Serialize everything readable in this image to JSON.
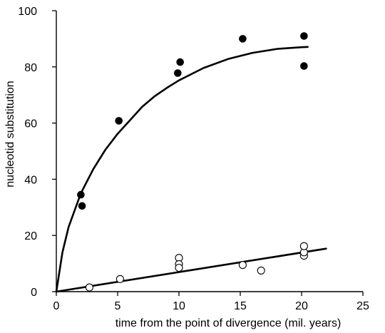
{
  "chart_data": {
    "type": "scatter",
    "title": "",
    "xlabel": "time from the point of divergence (mil. years)",
    "ylabel": "nucleotid substitution",
    "xlim": [
      0,
      25
    ],
    "ylim": [
      0,
      100
    ],
    "xticks": [
      "0",
      "5",
      "10",
      "15",
      "20",
      "25"
    ],
    "yticks": [
      "0",
      "20",
      "40",
      "60",
      "80",
      "100"
    ],
    "grid": false,
    "legend": "none",
    "series": [
      {
        "marker": "filled-circle",
        "color": "#000000",
        "points": [
          [
            2.0,
            34.5
          ],
          [
            2.1,
            30.5
          ],
          [
            5.1,
            60.8
          ],
          [
            9.9,
            77.8
          ],
          [
            10.1,
            81.7
          ],
          [
            15.2,
            90.0
          ],
          [
            20.2,
            91.0
          ],
          [
            20.2,
            80.3
          ]
        ]
      },
      {
        "marker": "open-circle",
        "color": "#000000",
        "points": [
          [
            2.7,
            1.5
          ],
          [
            5.2,
            4.5
          ],
          [
            10.0,
            12.0
          ],
          [
            10.0,
            9.8
          ],
          [
            10.0,
            8.5
          ],
          [
            15.2,
            9.5
          ],
          [
            16.7,
            7.5
          ],
          [
            20.2,
            12.8
          ],
          [
            20.2,
            14.0
          ],
          [
            20.2,
            16.2
          ]
        ]
      }
    ],
    "fit_lines": [
      {
        "curve": "saturating",
        "points": [
          [
            0.0,
            0.0
          ],
          [
            0.5,
            14.0
          ],
          [
            1.0,
            23.0
          ],
          [
            2.0,
            35.0
          ],
          [
            3.0,
            43.5
          ],
          [
            4.0,
            50.5
          ],
          [
            5.0,
            56.2
          ],
          [
            6.0,
            61.0
          ],
          [
            7.0,
            65.8
          ],
          [
            8.0,
            69.5
          ],
          [
            9.0,
            72.5
          ],
          [
            10.0,
            75.2
          ],
          [
            12.0,
            79.6
          ],
          [
            14.0,
            82.8
          ],
          [
            16.0,
            85.0
          ],
          [
            18.0,
            86.4
          ],
          [
            20.0,
            87.0
          ],
          [
            20.5,
            87.1
          ]
        ]
      },
      {
        "curve": "linear",
        "points": [
          [
            0.0,
            0.0
          ],
          [
            22.0,
            15.3
          ]
        ]
      }
    ]
  }
}
